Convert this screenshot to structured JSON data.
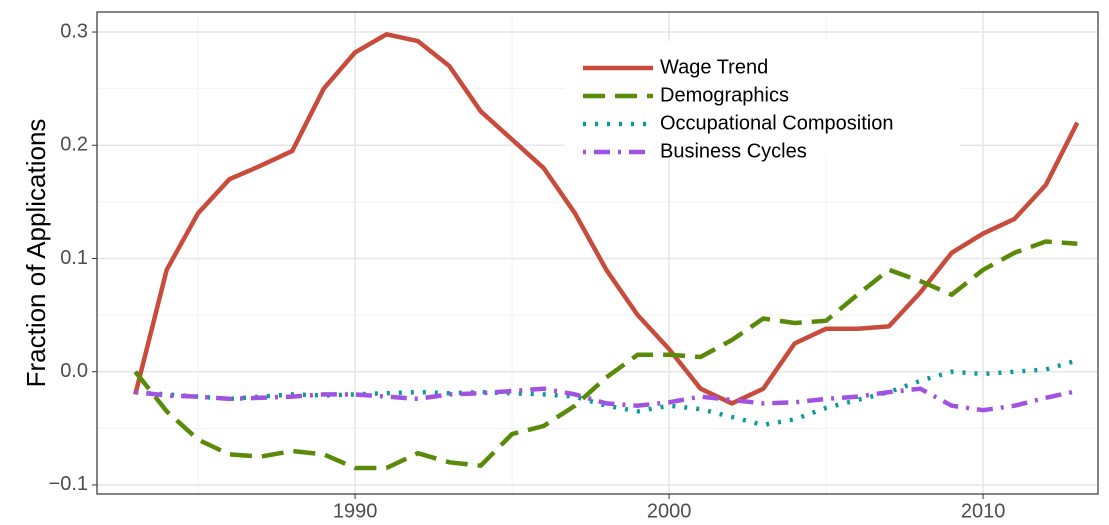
{
  "chart_data": {
    "type": "line",
    "y_label": "Fraction of Applications",
    "x": [
      1983,
      1984,
      1985,
      1986,
      1987,
      1988,
      1989,
      1990,
      1991,
      1992,
      1993,
      1994,
      1995,
      1996,
      1997,
      1998,
      1999,
      2000,
      2001,
      2002,
      2003,
      2004,
      2005,
      2006,
      2007,
      2008,
      2009,
      2010,
      2011,
      2012,
      2013
    ],
    "series": [
      {
        "name": "Wage Trend",
        "color": "#c84b3c",
        "linetype": "solid",
        "values": [
          -0.02,
          0.09,
          0.14,
          0.17,
          0.182,
          0.195,
          0.25,
          0.282,
          0.298,
          0.292,
          0.27,
          0.23,
          0.205,
          0.18,
          0.14,
          0.09,
          0.05,
          0.02,
          -0.015,
          -0.028,
          -0.015,
          0.025,
          0.038,
          0.038,
          0.04,
          0.07,
          0.105,
          0.122,
          0.135,
          0.165,
          0.22
        ]
      },
      {
        "name": "Demographics",
        "color": "#5a8a0a",
        "linetype": "dashed",
        "values": [
          0.0,
          -0.035,
          -0.06,
          -0.073,
          -0.075,
          -0.07,
          -0.073,
          -0.085,
          -0.085,
          -0.072,
          -0.08,
          -0.083,
          -0.055,
          -0.048,
          -0.03,
          -0.005,
          0.015,
          0.015,
          0.013,
          0.028,
          0.047,
          0.043,
          0.045,
          0.068,
          0.09,
          0.08,
          0.068,
          0.09,
          0.105,
          0.115,
          0.113
        ]
      },
      {
        "name": "Occupational Composition",
        "color": "#0f9a9a",
        "linetype": "dotted",
        "values": [
          -0.018,
          -0.02,
          -0.022,
          -0.024,
          -0.022,
          -0.02,
          -0.021,
          -0.02,
          -0.019,
          -0.018,
          -0.019,
          -0.018,
          -0.019,
          -0.02,
          -0.022,
          -0.03,
          -0.035,
          -0.03,
          -0.033,
          -0.04,
          -0.047,
          -0.042,
          -0.032,
          -0.025,
          -0.018,
          -0.008,
          0.0,
          -0.002,
          0.0,
          0.002,
          0.01
        ]
      },
      {
        "name": "Business Cycles",
        "color": "#a052e0",
        "linetype": "dotdash",
        "values": [
          -0.018,
          -0.021,
          -0.022,
          -0.024,
          -0.023,
          -0.022,
          -0.02,
          -0.02,
          -0.022,
          -0.024,
          -0.02,
          -0.019,
          -0.017,
          -0.015,
          -0.02,
          -0.028,
          -0.03,
          -0.027,
          -0.022,
          -0.025,
          -0.028,
          -0.027,
          -0.024,
          -0.022,
          -0.018,
          -0.015,
          -0.03,
          -0.034,
          -0.03,
          -0.023,
          -0.017
        ]
      }
    ],
    "xlim": [
      1981.78,
      2013.66
    ],
    "xticks": [
      1990,
      2000,
      2010
    ],
    "ylim": [
      -0.108,
      0.3177
    ],
    "yticks": [
      {
        "value": -0.1,
        "label": "−0.1"
      },
      {
        "value": 0,
        "label": "0.0"
      },
      0.1,
      0.2,
      0.3
    ],
    "grid": true,
    "minor_grid": true,
    "legend": "top"
  }
}
